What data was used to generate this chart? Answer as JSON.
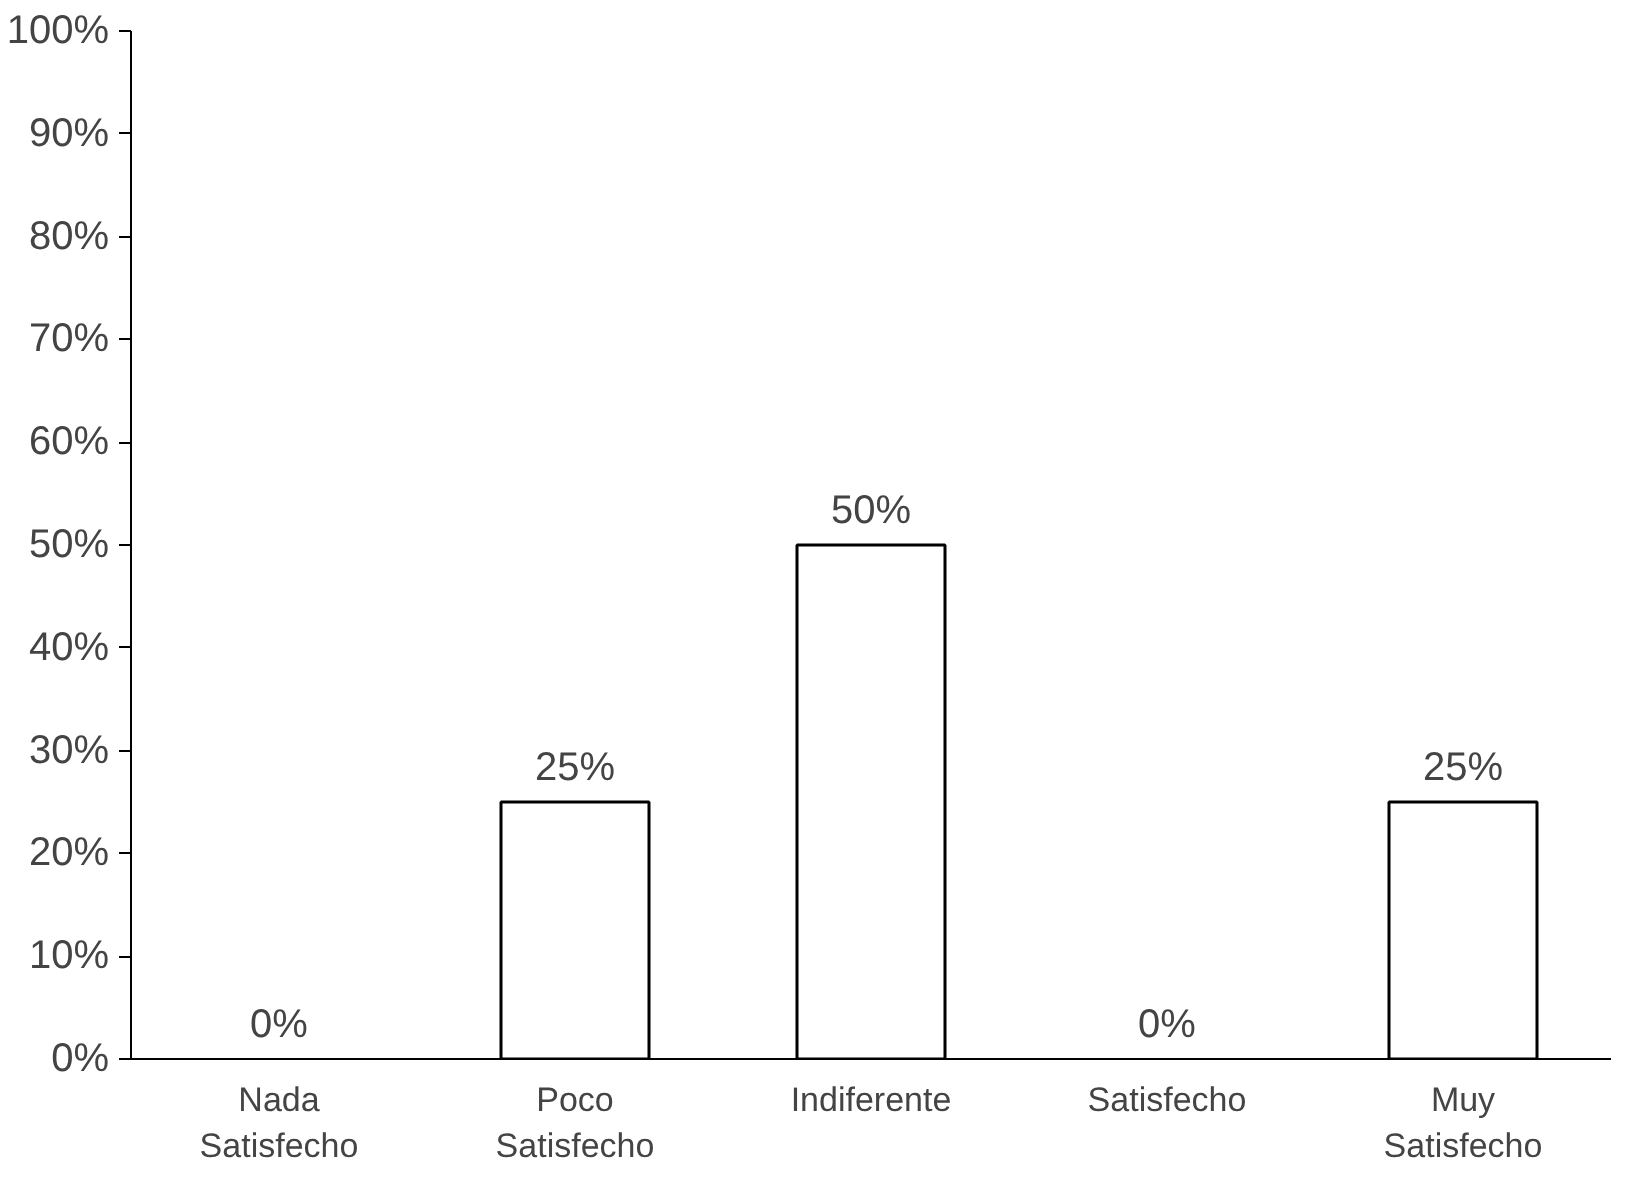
{
  "chart_data": {
    "type": "bar",
    "categories": [
      "Nada Satisfecho",
      "Poco Satisfecho",
      "Indiferente",
      "Satisfecho",
      "Muy Satisfecho"
    ],
    "values": [
      0,
      25,
      50,
      0,
      25
    ],
    "value_labels": [
      "0%",
      "25%",
      "50%",
      "0%",
      "25%"
    ],
    "color": "#ffffff",
    "ylim": [
      0,
      100
    ],
    "yticks": [
      {
        "value": 0,
        "label": "0%"
      },
      {
        "value": 10,
        "label": "10%"
      },
      {
        "value": 20,
        "label": "20%"
      },
      {
        "value": 30,
        "label": "30%"
      },
      {
        "value": 40,
        "label": "40%"
      },
      {
        "value": 50,
        "label": "50%"
      },
      {
        "value": 60,
        "label": "60%"
      },
      {
        "value": 70,
        "label": "70%"
      },
      {
        "value": 80,
        "label": "80%"
      },
      {
        "value": 90,
        "label": "90%"
      },
      {
        "value": 100,
        "label": "100%"
      }
    ],
    "grid": false
  }
}
